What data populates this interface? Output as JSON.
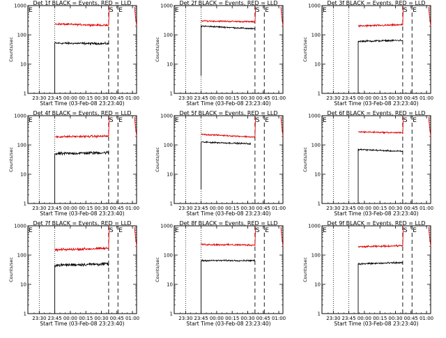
{
  "figure": {
    "background": "#ffffff",
    "colors": {
      "events": "#000000",
      "lld": "#e00000",
      "axes": "#000000"
    }
  },
  "chart_data": [
    {
      "type": "line",
      "title": "Det 1f BLACK = Events, RED = LLD",
      "xlabel": "Start Time (03-Feb-08 23:23:40)",
      "ylabel": "Counts/sec",
      "yscale": "log",
      "ylim": [
        1,
        1000
      ],
      "yticks": [
        "1",
        "10",
        "100",
        "1000"
      ],
      "xticks": [
        "23:30",
        "23:45",
        "00:00",
        "00:15",
        "00:30",
        "00:45",
        "01:00"
      ],
      "xlim_min": [
        -5,
        100
      ],
      "grid": false,
      "flags": [
        {
          "label": "E",
          "t": -5
        },
        {
          "label": "S",
          "t": 73
        },
        {
          "label": "E",
          "t": 82
        }
      ],
      "dotted_lines": [
        6,
        21,
        100
      ],
      "dashed_lines": [
        73,
        82
      ],
      "series": [
        {
          "name": "Events",
          "color": "#000000",
          "start": 21,
          "end": 73,
          "level_start": 52,
          "level_end": 50,
          "rise_from": 1,
          "noise": 0.06,
          "end_rise": 0
        },
        {
          "name": "LLD",
          "color": "#e00000",
          "start": 21,
          "end": 73,
          "level_start": 235,
          "level_end": 210,
          "noise": 0.05,
          "end_rise": 900,
          "tail": [
            [
              98,
              900
            ],
            [
              99,
              400
            ],
            [
              100,
              200
            ]
          ]
        }
      ]
    },
    {
      "type": "line",
      "title": "Det 2f BLACK = Events, RED = LLD",
      "xlabel": "Start Time (03-Feb-08 23:23:40)",
      "ylabel": "Counts/sec",
      "yscale": "log",
      "ylim": [
        1,
        1000
      ],
      "yticks": [
        "1",
        "10",
        "100",
        "1000"
      ],
      "xticks": [
        "23:30",
        "23:45",
        "00:00",
        "00:15",
        "00:30",
        "00:45",
        "01:00"
      ],
      "xlim_min": [
        -5,
        100
      ],
      "grid": false,
      "flags": [
        {
          "label": "E",
          "t": -5
        },
        {
          "label": "S",
          "t": 73
        },
        {
          "label": "E",
          "t": 82
        }
      ],
      "dotted_lines": [
        6,
        21,
        100
      ],
      "dashed_lines": [
        73,
        82
      ],
      "series": [
        {
          "name": "Events",
          "color": "#000000",
          "start": 21,
          "end": 73,
          "level_start": 200,
          "level_end": 160,
          "rise_from": 4,
          "noise": 0.04,
          "end_rise": 0
        },
        {
          "name": "LLD",
          "color": "#e00000",
          "start": 21,
          "end": 73,
          "level_start": 300,
          "level_end": 280,
          "noise": 0.04,
          "end_rise": 900,
          "tail": [
            [
              98,
              900
            ],
            [
              99,
              400
            ],
            [
              100,
              200
            ]
          ]
        }
      ]
    },
    {
      "type": "line",
      "title": "Det 3f BLACK = Events, RED = LLD",
      "xlabel": "Start Time (03-Feb-08 23:23:40)",
      "ylabel": "Counts/sec",
      "yscale": "log",
      "ylim": [
        1,
        1000
      ],
      "yticks": [
        "1",
        "10",
        "100",
        "1000"
      ],
      "xticks": [
        "23:30",
        "23:45",
        "00:00",
        "00:15",
        "00:30",
        "00:45",
        "01:00"
      ],
      "xlim_min": [
        -5,
        100
      ],
      "grid": false,
      "flags": [
        {
          "label": "E",
          "t": -5
        },
        {
          "label": "S",
          "t": 73
        },
        {
          "label": "E",
          "t": 82
        }
      ],
      "dotted_lines": [
        6,
        21,
        100
      ],
      "dashed_lines": [
        73,
        82
      ],
      "series": [
        {
          "name": "Events",
          "color": "#000000",
          "start": 30,
          "end": 73,
          "level_start": 60,
          "level_end": 65,
          "rise_from": 1,
          "noise": 0.05,
          "end_rise": 0
        },
        {
          "name": "LLD",
          "color": "#e00000",
          "start": 30,
          "end": 73,
          "level_start": 200,
          "level_end": 220,
          "noise": 0.05,
          "end_rise": 900,
          "tail": [
            [
              98,
              900
            ],
            [
              99,
              400
            ],
            [
              100,
              200
            ]
          ]
        }
      ]
    },
    {
      "type": "line",
      "title": "Det 4f BLACK = Events, RED = LLD",
      "xlabel": "Start Time (03-Feb-08 23:23:40)",
      "ylabel": "Counts/sec",
      "yscale": "log",
      "ylim": [
        1,
        1000
      ],
      "yticks": [
        "1",
        "10",
        "100",
        "1000"
      ],
      "xticks": [
        "23:30",
        "23:45",
        "00:00",
        "00:15",
        "00:30",
        "00:45",
        "01:00"
      ],
      "xlim_min": [
        -5,
        100
      ],
      "grid": false,
      "flags": [
        {
          "label": "E",
          "t": -5
        },
        {
          "label": "S",
          "t": 73
        },
        {
          "label": "E",
          "t": 82
        }
      ],
      "dotted_lines": [
        6,
        21,
        100
      ],
      "dashed_lines": [
        73,
        82
      ],
      "series": [
        {
          "name": "Events",
          "color": "#000000",
          "start": 21,
          "end": 73,
          "level_start": 50,
          "level_end": 55,
          "rise_from": 0,
          "noise": 0.09,
          "end_rise": 0
        },
        {
          "name": "LLD",
          "color": "#e00000",
          "start": 21,
          "end": 73,
          "level_start": 190,
          "level_end": 200,
          "noise": 0.06,
          "end_rise": 900,
          "tail": [
            [
              98,
              900
            ],
            [
              99,
              400
            ],
            [
              100,
              200
            ]
          ]
        }
      ]
    },
    {
      "type": "line",
      "title": "Det 5f BLACK = Events, RED = LLD",
      "xlabel": "Start Time (03-Feb-08 23:23:40)",
      "ylabel": "Counts/sec",
      "yscale": "log",
      "ylim": [
        1,
        1000
      ],
      "yticks": [
        "1",
        "10",
        "100",
        "1000"
      ],
      "xticks": [
        "23:30",
        "23:45",
        "00:00",
        "00:15",
        "00:30",
        "00:45",
        "01:00"
      ],
      "xlim_min": [
        -5,
        100
      ],
      "grid": false,
      "flags": [
        {
          "label": "E",
          "t": -5
        },
        {
          "label": "S",
          "t": 73
        },
        {
          "label": "E",
          "t": 82
        }
      ],
      "dotted_lines": [
        6,
        21,
        100
      ],
      "dashed_lines": [
        73,
        82
      ],
      "series": [
        {
          "name": "Events",
          "color": "#000000",
          "start": 21,
          "end": 69,
          "level_start": 125,
          "level_end": 110,
          "rise_from": 3,
          "noise": 0.04,
          "end_rise": 0
        },
        {
          "name": "LLD",
          "color": "#e00000",
          "start": 21,
          "end": 73,
          "level_start": 230,
          "level_end": 185,
          "noise": 0.04,
          "end_rise": 900,
          "tail": [
            [
              98,
              900
            ],
            [
              99,
              400
            ],
            [
              100,
              200
            ]
          ]
        }
      ]
    },
    {
      "type": "line",
      "title": "Det 6f BLACK = Events, RED = LLD",
      "xlabel": "Start Time (03-Feb-08 23:23:40)",
      "ylabel": "Counts/sec",
      "yscale": "log",
      "ylim": [
        1,
        1000
      ],
      "yticks": [
        "1",
        "10",
        "100",
        "1000"
      ],
      "xticks": [
        "23:30",
        "23:45",
        "00:00",
        "00:15",
        "00:30",
        "00:45",
        "01:00"
      ],
      "xlim_min": [
        -5,
        100
      ],
      "grid": false,
      "flags": [
        {
          "label": "E",
          "t": -5
        },
        {
          "label": "S",
          "t": 73
        },
        {
          "label": "E",
          "t": 82
        }
      ],
      "dotted_lines": [
        6,
        21,
        100
      ],
      "dashed_lines": [
        73,
        82
      ],
      "series": [
        {
          "name": "Events",
          "color": "#000000",
          "start": 30,
          "end": 73,
          "level_start": 70,
          "level_end": 60,
          "rise_from": 1,
          "noise": 0.04,
          "end_rise": 0
        },
        {
          "name": "LLD",
          "color": "#e00000",
          "start": 30,
          "end": 73,
          "level_start": 280,
          "level_end": 260,
          "noise": 0.04,
          "end_rise": 900,
          "tail": [
            [
              98,
              900
            ],
            [
              99,
              400
            ],
            [
              100,
              200
            ]
          ]
        }
      ]
    },
    {
      "type": "line",
      "title": "Det 7f BLACK = Events, RED = LLD",
      "xlabel": "Start Time (03-Feb-08 23:23:40)",
      "ylabel": "Counts/sec",
      "yscale": "log",
      "ylim": [
        1,
        1000
      ],
      "yticks": [
        "1",
        "10",
        "100",
        "1000"
      ],
      "xticks": [
        "23:30",
        "23:45",
        "00:00",
        "00:15",
        "00:30",
        "00:45",
        "01:00"
      ],
      "xlim_min": [
        -5,
        100
      ],
      "grid": false,
      "flags": [
        {
          "label": "E",
          "t": -5
        },
        {
          "label": "S",
          "t": 73
        },
        {
          "label": "E",
          "t": 82
        }
      ],
      "dotted_lines": [
        6,
        21,
        100
      ],
      "dashed_lines": [
        73,
        82
      ],
      "series": [
        {
          "name": "Events",
          "color": "#000000",
          "start": 21,
          "end": 73,
          "level_start": 45,
          "level_end": 50,
          "rise_from": 0,
          "noise": 0.09,
          "end_rise": 0
        },
        {
          "name": "LLD",
          "color": "#e00000",
          "start": 21,
          "end": 73,
          "level_start": 150,
          "level_end": 170,
          "noise": 0.07,
          "end_rise": 900,
          "tail": [
            [
              98,
              900
            ],
            [
              99,
              400
            ],
            [
              100,
              200
            ]
          ]
        }
      ]
    },
    {
      "type": "line",
      "title": "Det 8f BLACK = Events, RED = LLD",
      "xlabel": "Start Time (03-Feb-08 23:23:40)",
      "ylabel": "Counts/sec",
      "yscale": "log",
      "ylim": [
        1,
        1000
      ],
      "yticks": [
        "1",
        "10",
        "100",
        "1000"
      ],
      "xticks": [
        "23:30",
        "23:45",
        "00:00",
        "00:15",
        "00:30",
        "00:45",
        "01:00"
      ],
      "xlim_min": [
        -5,
        100
      ],
      "grid": false,
      "flags": [
        {
          "label": "E",
          "t": -5
        },
        {
          "label": "S",
          "t": 73
        },
        {
          "label": "E",
          "t": 82
        }
      ],
      "dotted_lines": [
        6,
        21,
        100
      ],
      "dashed_lines": [
        73,
        82
      ],
      "series": [
        {
          "name": "Events",
          "color": "#000000",
          "start": 21,
          "end": 73,
          "level_start": 65,
          "level_end": 65,
          "rise_from": 1,
          "noise": 0.04,
          "end_rise": 0
        },
        {
          "name": "LLD",
          "color": "#e00000",
          "start": 21,
          "end": 73,
          "level_start": 230,
          "level_end": 220,
          "noise": 0.05,
          "end_rise": 900,
          "tail": [
            [
              98,
              900
            ],
            [
              99,
              400
            ],
            [
              100,
              200
            ]
          ]
        }
      ]
    },
    {
      "type": "line",
      "title": "Det 9f BLACK = Events, RED = LLD",
      "xlabel": "Start Time (03-Feb-08 23:23:40)",
      "ylabel": "Counts/sec",
      "yscale": "log",
      "ylim": [
        1,
        1000
      ],
      "yticks": [
        "1",
        "10",
        "100",
        "1000"
      ],
      "xticks": [
        "23:30",
        "23:45",
        "00:00",
        "00:15",
        "00:30",
        "00:45",
        "01:00"
      ],
      "xlim_min": [
        -5,
        100
      ],
      "grid": false,
      "flags": [
        {
          "label": "E",
          "t": -5
        },
        {
          "label": "S",
          "t": 73
        },
        {
          "label": "E",
          "t": 82
        }
      ],
      "dotted_lines": [
        6,
        21,
        100
      ],
      "dashed_lines": [
        73,
        82
      ],
      "series": [
        {
          "name": "Events",
          "color": "#000000",
          "start": 30,
          "end": 73,
          "level_start": 50,
          "level_end": 55,
          "rise_from": 1,
          "noise": 0.05,
          "end_rise": 0
        },
        {
          "name": "LLD",
          "color": "#e00000",
          "start": 30,
          "end": 73,
          "level_start": 190,
          "level_end": 210,
          "noise": 0.05,
          "end_rise": 900,
          "tail": [
            [
              98,
              900
            ],
            [
              99,
              400
            ],
            [
              100,
              200
            ]
          ]
        }
      ]
    }
  ]
}
